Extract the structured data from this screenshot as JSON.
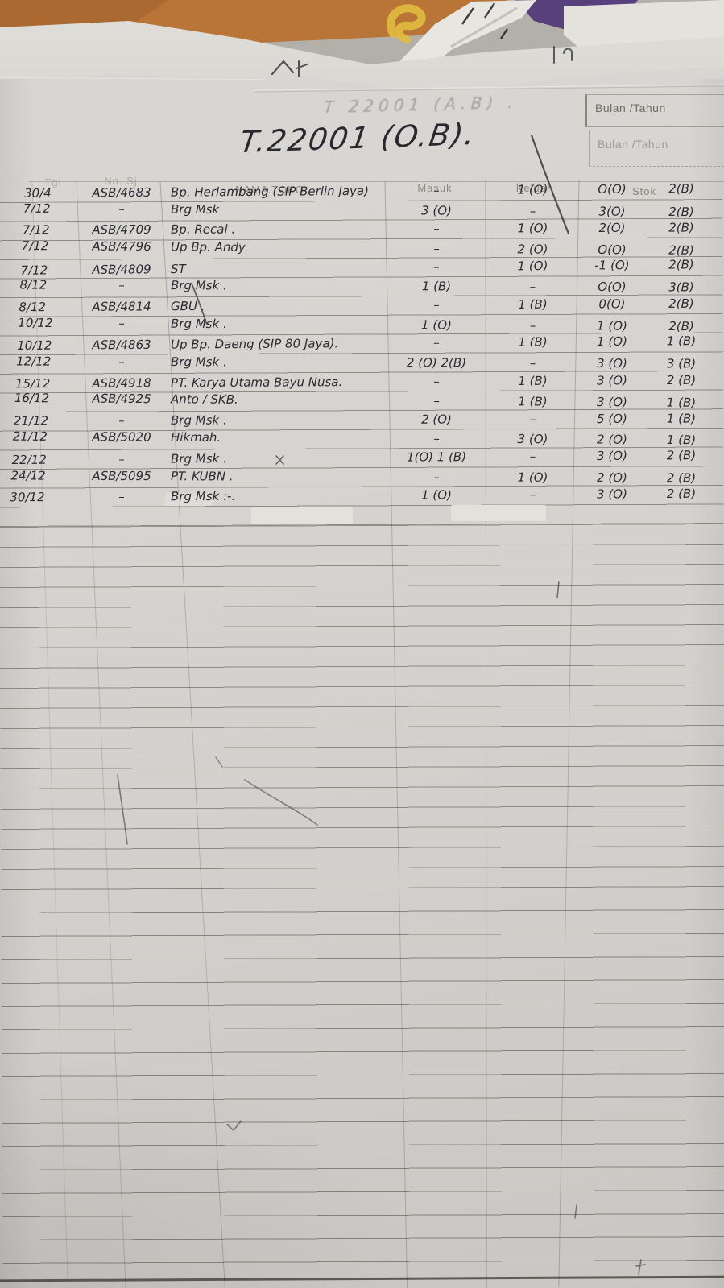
{
  "document": {
    "title": "T.22001 (O.B).",
    "title_bleed_through": "T 22001 (A.B) .",
    "corner_label_top": "Bulan /Tahun",
    "corner_label_bottom": "Bulan /Tahun",
    "table": {
      "headers": {
        "tgl": "Tgl",
        "no_sj": "No. Sj",
        "nama_toko": "NAMA TOKO",
        "masuk": "Masuk",
        "keluar": "Keluar",
        "stok": "Stok"
      },
      "rows": [
        {
          "tgl": "30/4",
          "no": "ASB/4683",
          "nama": "Bp. Herlambang (SIP Berlin Jaya)",
          "masuk": "–",
          "keluar": "1 (O)",
          "stok1": "O(O)",
          "stok2": "2(B)"
        },
        {
          "tgl": "7/12",
          "no": "–",
          "nama": "Brg Msk",
          "masuk": "3 (O)",
          "keluar": "–",
          "stok1": "3(O)",
          "stok2": "2(B)"
        },
        {
          "tgl": "7/12",
          "no": "ASB/4709",
          "nama": "Bp. Recal .",
          "masuk": "–",
          "keluar": "1 (O)",
          "stok1": "2(O)",
          "stok2": "2(B)"
        },
        {
          "tgl": "7/12",
          "no": "ASB/4796",
          "nama": "Up Bp. Andy",
          "masuk": "–",
          "keluar": "2 (O)",
          "stok1": "O(O)",
          "stok2": "2(B)"
        },
        {
          "tgl": "7/12",
          "no": "ASB/4809",
          "nama": "ST",
          "masuk": "–",
          "keluar": "1 (O)",
          "stok1": "-1 (O)",
          "stok2": "2(B)"
        },
        {
          "tgl": "8/12",
          "no": "–",
          "nama": "Brg Msk .",
          "masuk": "1 (B)",
          "keluar": "–",
          "stok1": "O(O)",
          "stok2": "3(B)"
        },
        {
          "tgl": "8/12",
          "no": "ASB/4814",
          "nama": "GBU .",
          "masuk": "–",
          "keluar": "1 (B)",
          "stok1": "0(O)",
          "stok2": "2(B)"
        },
        {
          "tgl": "10/12",
          "no": "–",
          "nama": "Brg Msk .",
          "masuk": "1 (O)",
          "keluar": "–",
          "stok1": "1 (O)",
          "stok2": "2(B)"
        },
        {
          "tgl": "10/12",
          "no": "ASB/4863",
          "nama": "Up Bp. Daeng (SIP 80 Jaya).",
          "masuk": "–",
          "keluar": "1 (B)",
          "stok1": "1 (O)",
          "stok2": "1 (B)"
        },
        {
          "tgl": "12/12",
          "no": "–",
          "nama": "Brg Msk .",
          "masuk": "2 (O) 2(B)",
          "keluar": "–",
          "stok1": "3 (O)",
          "stok2": "3 (B)"
        },
        {
          "tgl": "15/12",
          "no": "ASB/4918",
          "nama": "PT. Karya Utama Bayu Nusa.",
          "masuk": "–",
          "keluar": "1 (B)",
          "stok1": "3 (O)",
          "stok2": "2 (B)"
        },
        {
          "tgl": "16/12",
          "no": "ASB/4925",
          "nama": "Anto / SKB.",
          "masuk": "–",
          "keluar": "1 (B)",
          "stok1": "3 (O)",
          "stok2": "1 (B)"
        },
        {
          "tgl": "21/12",
          "no": "–",
          "nama": "Brg Msk .",
          "masuk": "2 (O)",
          "keluar": "–",
          "stok1": "5 (O)",
          "stok2": "1 (B)"
        },
        {
          "tgl": "21/12",
          "no": "ASB/5020",
          "nama": "Hikmah.",
          "masuk": "–",
          "keluar": "3 (O)",
          "stok1": "2 (O)",
          "stok2": "1 (B)"
        },
        {
          "tgl": "22/12",
          "no": "–",
          "nama": "Brg Msk .",
          "masuk": "1(O) 1 (B)",
          "keluar": "–",
          "stok1": "3 (O)",
          "stok2": "2 (B)"
        },
        {
          "tgl": "24/12",
          "no": "ASB/5095",
          "nama": "PT. KUBN .",
          "masuk": "–",
          "keluar": "1 (O)",
          "stok1": "2 (O)",
          "stok2": "2 (B)"
        },
        {
          "tgl": "30/12",
          "no": "–",
          "nama": "Brg Msk :-.",
          "masuk": "1 (O)",
          "keluar": "–",
          "stok1": "3 (O)",
          "stok2": "2 (B)"
        }
      ]
    }
  },
  "colors": {
    "orange_paper": "#b97538",
    "yellow_accent": "#e0bd3e",
    "purple_paper": "#58407c",
    "white_paper": "#e7e5df",
    "sheet_paper": "#d4d2ce",
    "ink": "#2b2b31",
    "grid_line": "#46443e",
    "printed_text": "#7b7770"
  }
}
